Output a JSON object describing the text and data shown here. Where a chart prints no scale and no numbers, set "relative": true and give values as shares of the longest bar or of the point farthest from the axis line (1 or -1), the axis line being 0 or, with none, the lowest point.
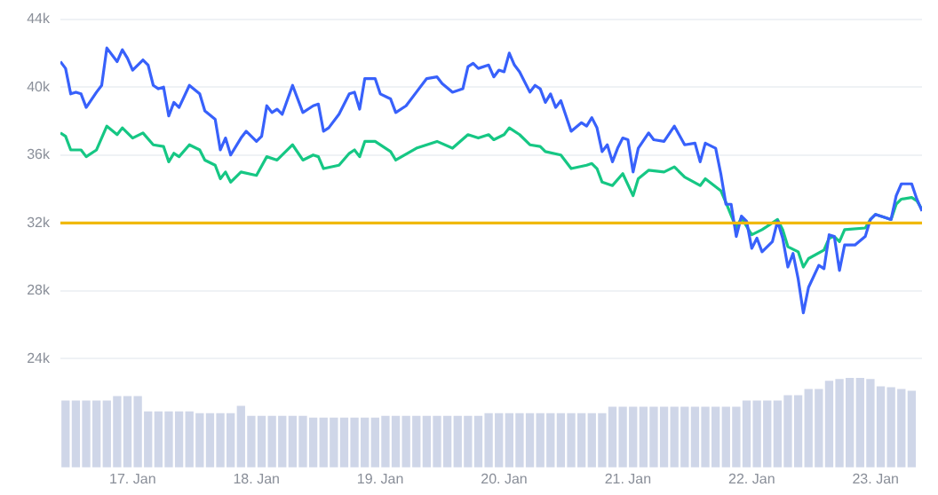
{
  "chart_data": [
    {
      "type": "line",
      "tick_labels": "y",
      "grid": "y",
      "xlim": [
        "--01-16T10:00",
        "--01-23T09:00"
      ],
      "ylim": [
        24000,
        44000
      ],
      "yticks": [
        {
          "value": 24000,
          "label": "24k"
        },
        {
          "value": 28000,
          "label": "28k"
        },
        {
          "value": 32000,
          "label": "32k"
        },
        {
          "value": 36000,
          "label": "36k"
        },
        {
          "value": 40000,
          "label": "40k"
        },
        {
          "value": 44000,
          "label": "44k"
        }
      ],
      "ref_lines": [
        {
          "axis": "y",
          "value": 32000,
          "color": "#f0b90b"
        }
      ],
      "series": [
        {
          "color": "#3861fb",
          "x": [
            "--01-16T10:00",
            "--01-16T11:00",
            "--01-16T12:00",
            "--01-16T13:00",
            "--01-16T14:00",
            "--01-16T15:00",
            "--01-16T17:00",
            "--01-16T18:00",
            "--01-16T19:00",
            "--01-16T21:00",
            "--01-16T22:00",
            "--01-16T23:00",
            "--01-17T00:00",
            "--01-17T02:00",
            "--01-17T03:00",
            "--01-17T04:00",
            "--01-17T05:00",
            "--01-17T06:00",
            "--01-17T07:00",
            "--01-17T08:00",
            "--01-17T09:00",
            "--01-17T11:00",
            "--01-17T13:00",
            "--01-17T14:00",
            "--01-17T16:00",
            "--01-17T17:00",
            "--01-17T18:00",
            "--01-17T19:00",
            "--01-17T21:00",
            "--01-17T22:00",
            "--01-18T00:00",
            "--01-18T01:00",
            "--01-18T02:00",
            "--01-18T03:00",
            "--01-18T04:00",
            "--01-18T05:00",
            "--01-18T07:00",
            "--01-18T09:00",
            "--01-18T11:00",
            "--01-18T12:00",
            "--01-18T13:00",
            "--01-18T14:00",
            "--01-18T16:00",
            "--01-18T18:00",
            "--01-18T19:00",
            "--01-18T20:00",
            "--01-18T21:00",
            "--01-18T23:00",
            "--01-19T00:00",
            "--01-19T02:00",
            "--01-19T03:00",
            "--01-19T05:00",
            "--01-19T07:00",
            "--01-19T09:00",
            "--01-19T11:00",
            "--01-19T12:00",
            "--01-19T14:00",
            "--01-19T16:00",
            "--01-19T17:00",
            "--01-19T18:00",
            "--01-19T19:00",
            "--01-19T21:00",
            "--01-19T22:00",
            "--01-19T23:00",
            "--01-20T00:00",
            "--01-20T01:00",
            "--01-20T02:00",
            "--01-20T03:00",
            "--01-20T05:00",
            "--01-20T06:00",
            "--01-20T07:00",
            "--01-20T08:00",
            "--01-20T09:00",
            "--01-20T10:00",
            "--01-20T11:00",
            "--01-20T13:00",
            "--01-20T15:00",
            "--01-20T16:00",
            "--01-20T17:00",
            "--01-20T18:00",
            "--01-20T19:00",
            "--01-20T20:00",
            "--01-20T21:00",
            "--01-20T22:00",
            "--01-20T23:00",
            "--01-21T00:00",
            "--01-21T01:00",
            "--01-21T02:00",
            "--01-21T04:00",
            "--01-21T05:00",
            "--01-21T07:00",
            "--01-21T09:00",
            "--01-21T11:00",
            "--01-21T13:00",
            "--01-21T14:00",
            "--01-21T15:00",
            "--01-21T17:00",
            "--01-21T18:00",
            "--01-21T19:00",
            "--01-21T20:00",
            "--01-21T21:00",
            "--01-21T22:00",
            "--01-21T23:00",
            "--01-22T00:00",
            "--01-22T01:00",
            "--01-22T02:00",
            "--01-22T04:00",
            "--01-22T05:00",
            "--01-22T06:00",
            "--01-22T07:00",
            "--01-22T08:00",
            "--01-22T09:00",
            "--01-22T10:00",
            "--01-22T11:00",
            "--01-22T13:00",
            "--01-22T14:00",
            "--01-22T15:00",
            "--01-22T16:00",
            "--01-22T17:00",
            "--01-22T18:00",
            "--01-22T20:00",
            "--01-22T22:00",
            "--01-22T23:00",
            "--01-23T00:00",
            "--01-23T02:00",
            "--01-23T03:00",
            "--01-23T04:00",
            "--01-23T05:00",
            "--01-23T07:00",
            "--01-23T08:00",
            "--01-23T09:00"
          ],
          "values": [
            41500,
            41100,
            39600,
            39700,
            39600,
            38800,
            39700,
            40100,
            42300,
            41500,
            42200,
            41700,
            41000,
            41600,
            41300,
            40100,
            39900,
            40000,
            38300,
            39100,
            38800,
            40100,
            39600,
            38600,
            38100,
            36300,
            37000,
            36000,
            37000,
            37400,
            36800,
            37100,
            38900,
            38500,
            38700,
            38400,
            40100,
            38500,
            38900,
            39000,
            37400,
            37600,
            38400,
            39600,
            39700,
            38700,
            40500,
            40500,
            39600,
            39300,
            38500,
            38900,
            39700,
            40500,
            40600,
            40200,
            39700,
            39900,
            41200,
            41400,
            41100,
            41300,
            40600,
            41000,
            40900,
            42000,
            41300,
            40900,
            39700,
            40100,
            39900,
            39100,
            39600,
            38800,
            39200,
            37400,
            37900,
            37700,
            38200,
            37600,
            36200,
            36600,
            35600,
            36400,
            37000,
            36900,
            35000,
            36400,
            37300,
            36900,
            36800,
            37700,
            36600,
            36700,
            35600,
            36700,
            36400,
            34900,
            33100,
            33100,
            31200,
            32400,
            32100,
            30500,
            31100,
            30300,
            30900,
            32100,
            31100,
            29400,
            30200,
            28700,
            26700,
            28200,
            29500,
            29300,
            31300,
            31200,
            29200,
            30700,
            30700,
            31200,
            32200,
            32500,
            32300,
            32200,
            33600,
            34300,
            34300,
            33400,
            32700
          ]
        },
        {
          "color": "#16c784",
          "x": [
            "--01-16T10:00",
            "--01-16T11:00",
            "--01-16T12:00",
            "--01-16T14:00",
            "--01-16T15:00",
            "--01-16T17:00",
            "--01-16T19:00",
            "--01-16T21:00",
            "--01-16T22:00",
            "--01-17T00:00",
            "--01-17T02:00",
            "--01-17T04:00",
            "--01-17T06:00",
            "--01-17T07:00",
            "--01-17T08:00",
            "--01-17T09:00",
            "--01-17T11:00",
            "--01-17T13:00",
            "--01-17T14:00",
            "--01-17T16:00",
            "--01-17T17:00",
            "--01-17T18:00",
            "--01-17T19:00",
            "--01-17T21:00",
            "--01-18T00:00",
            "--01-18T02:00",
            "--01-18T04:00",
            "--01-18T07:00",
            "--01-18T09:00",
            "--01-18T11:00",
            "--01-18T12:00",
            "--01-18T13:00",
            "--01-18T16:00",
            "--01-18T18:00",
            "--01-18T19:00",
            "--01-18T20:00",
            "--01-18T21:00",
            "--01-18T23:00",
            "--01-19T02:00",
            "--01-19T03:00",
            "--01-19T07:00",
            "--01-19T11:00",
            "--01-19T14:00",
            "--01-19T17:00",
            "--01-19T19:00",
            "--01-19T21:00",
            "--01-19T22:00",
            "--01-20T00:00",
            "--01-20T01:00",
            "--01-20T03:00",
            "--01-20T05:00",
            "--01-20T07:00",
            "--01-20T08:00",
            "--01-20T11:00",
            "--01-20T13:00",
            "--01-20T16:00",
            "--01-20T17:00",
            "--01-20T18:00",
            "--01-20T19:00",
            "--01-20T21:00",
            "--01-20T23:00",
            "--01-21T01:00",
            "--01-21T02:00",
            "--01-21T04:00",
            "--01-21T07:00",
            "--01-21T09:00",
            "--01-21T11:00",
            "--01-21T14:00",
            "--01-21T15:00",
            "--01-21T18:00",
            "--01-21T19:00",
            "--01-21T21:00",
            "--01-21T22:00",
            "--01-22T00:00",
            "--01-22T02:00",
            "--01-22T05:00",
            "--01-22T06:00",
            "--01-22T07:00",
            "--01-22T09:00",
            "--01-22T10:00",
            "--01-22T11:00",
            "--01-22T14:00",
            "--01-22T15:00",
            "--01-22T16:00",
            "--01-22T17:00",
            "--01-22T18:00",
            "--01-22T22:00",
            "--01-22T23:00",
            "--01-23T00:00",
            "--01-23T03:00",
            "--01-23T04:00",
            "--01-23T05:00",
            "--01-23T07:00",
            "--01-23T08:00",
            "--01-23T09:00"
          ],
          "values": [
            37300,
            37100,
            36300,
            36300,
            35900,
            36300,
            37700,
            37200,
            37600,
            37000,
            37300,
            36600,
            36500,
            35600,
            36100,
            35900,
            36600,
            36300,
            35700,
            35400,
            34600,
            35000,
            34400,
            35000,
            34800,
            35900,
            35700,
            36600,
            35700,
            36000,
            35900,
            35200,
            35400,
            36100,
            36300,
            35900,
            36800,
            36800,
            36200,
            35700,
            36400,
            36800,
            36400,
            37200,
            37000,
            37200,
            36900,
            37200,
            37600,
            37200,
            36600,
            36500,
            36200,
            36000,
            35200,
            35400,
            35500,
            35200,
            34400,
            34200,
            34900,
            33600,
            34600,
            35100,
            35000,
            35300,
            34700,
            34200,
            34600,
            33900,
            33200,
            31700,
            32300,
            31300,
            31600,
            32200,
            31600,
            30600,
            30300,
            29400,
            29900,
            30400,
            31100,
            31200,
            30900,
            31600,
            31700,
            32200,
            32500,
            32200,
            33100,
            33400,
            33500,
            33300,
            32800
          ]
        }
      ]
    },
    {
      "type": "bar",
      "relative": true,
      "tick_labels": "x",
      "xlim": [
        "--01-16T10:00",
        "--01-23T09:00"
      ],
      "xticks": [
        {
          "value": "--01-17",
          "label": "17. Jan"
        },
        {
          "value": "--01-18",
          "label": "18. Jan"
        },
        {
          "value": "--01-19",
          "label": "19. Jan"
        },
        {
          "value": "--01-20",
          "label": "20. Jan"
        },
        {
          "value": "--01-21",
          "label": "21. Jan"
        },
        {
          "value": "--01-22",
          "label": "22. Jan"
        },
        {
          "value": "--01-23",
          "label": "23. Jan"
        }
      ],
      "color": "#cfd6e8",
      "x": [
        "--01-16T11:00",
        "--01-16T13:00",
        "--01-16T15:00",
        "--01-16T17:00",
        "--01-16T19:00",
        "--01-16T21:00",
        "--01-16T23:00",
        "--01-17T01:00",
        "--01-17T03:00",
        "--01-17T05:00",
        "--01-17T07:00",
        "--01-17T09:00",
        "--01-17T11:00",
        "--01-17T13:00",
        "--01-17T15:00",
        "--01-17T17:00",
        "--01-17T19:00",
        "--01-17T21:00",
        "--01-17T23:00",
        "--01-18T01:00",
        "--01-18T03:00",
        "--01-18T05:00",
        "--01-18T07:00",
        "--01-18T09:00",
        "--01-18T11:00",
        "--01-18T13:00",
        "--01-18T15:00",
        "--01-18T17:00",
        "--01-18T19:00",
        "--01-18T21:00",
        "--01-18T23:00",
        "--01-19T01:00",
        "--01-19T03:00",
        "--01-19T05:00",
        "--01-19T07:00",
        "--01-19T09:00",
        "--01-19T11:00",
        "--01-19T13:00",
        "--01-19T15:00",
        "--01-19T17:00",
        "--01-19T19:00",
        "--01-19T21:00",
        "--01-19T23:00",
        "--01-20T01:00",
        "--01-20T03:00",
        "--01-20T05:00",
        "--01-20T07:00",
        "--01-20T09:00",
        "--01-20T11:00",
        "--01-20T13:00",
        "--01-20T15:00",
        "--01-20T17:00",
        "--01-20T19:00",
        "--01-20T21:00",
        "--01-20T23:00",
        "--01-21T01:00",
        "--01-21T03:00",
        "--01-21T05:00",
        "--01-21T07:00",
        "--01-21T09:00",
        "--01-21T11:00",
        "--01-21T13:00",
        "--01-21T15:00",
        "--01-21T17:00",
        "--01-21T19:00",
        "--01-21T21:00",
        "--01-21T23:00",
        "--01-22T01:00",
        "--01-22T03:00",
        "--01-22T05:00",
        "--01-22T07:00",
        "--01-22T09:00",
        "--01-22T11:00",
        "--01-22T13:00",
        "--01-22T15:00",
        "--01-22T17:00",
        "--01-22T19:00",
        "--01-22T21:00",
        "--01-22T23:00",
        "--01-23T01:00",
        "--01-23T03:00",
        "--01-23T05:00",
        "--01-23T07:00"
      ],
      "values": [
        0.74,
        0.74,
        0.74,
        0.74,
        0.74,
        0.79,
        0.79,
        0.79,
        0.62,
        0.62,
        0.62,
        0.62,
        0.62,
        0.6,
        0.6,
        0.6,
        0.6,
        0.68,
        0.57,
        0.57,
        0.57,
        0.57,
        0.57,
        0.57,
        0.55,
        0.55,
        0.55,
        0.55,
        0.55,
        0.55,
        0.55,
        0.57,
        0.57,
        0.57,
        0.57,
        0.57,
        0.57,
        0.57,
        0.57,
        0.57,
        0.57,
        0.6,
        0.6,
        0.6,
        0.6,
        0.6,
        0.6,
        0.6,
        0.6,
        0.6,
        0.6,
        0.6,
        0.6,
        0.67,
        0.67,
        0.67,
        0.67,
        0.67,
        0.67,
        0.67,
        0.67,
        0.67,
        0.67,
        0.67,
        0.67,
        0.67,
        0.74,
        0.74,
        0.74,
        0.74,
        0.8,
        0.8,
        0.87,
        0.87,
        0.96,
        0.98,
        1,
        1,
        0.98,
        0.9,
        0.89,
        0.87,
        0.85
      ]
    }
  ]
}
